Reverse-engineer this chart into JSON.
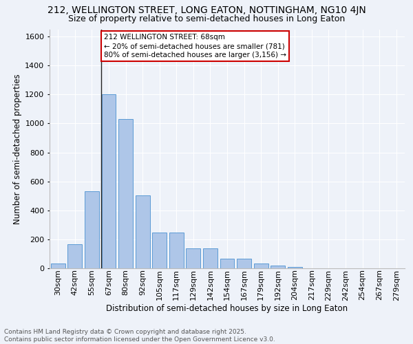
{
  "title": "212, WELLINGTON STREET, LONG EATON, NOTTINGHAM, NG10 4JN",
  "subtitle": "Size of property relative to semi-detached houses in Long Eaton",
  "xlabel": "Distribution of semi-detached houses by size in Long Eaton",
  "ylabel": "Number of semi-detached properties",
  "categories": [
    "30sqm",
    "42sqm",
    "55sqm",
    "67sqm",
    "80sqm",
    "92sqm",
    "105sqm",
    "117sqm",
    "129sqm",
    "142sqm",
    "154sqm",
    "167sqm",
    "179sqm",
    "192sqm",
    "204sqm",
    "217sqm",
    "229sqm",
    "242sqm",
    "254sqm",
    "267sqm",
    "279sqm"
  ],
  "values": [
    35,
    165,
    530,
    1200,
    1030,
    505,
    245,
    245,
    140,
    140,
    65,
    65,
    35,
    20,
    10,
    0,
    0,
    0,
    0,
    0,
    0
  ],
  "bar_color": "#aec6e8",
  "bar_edge_color": "#5b9bd5",
  "property_label": "212 WELLINGTON STREET: 68sqm",
  "pct_smaller": 20,
  "n_smaller": 781,
  "pct_larger": 80,
  "n_larger": 3156,
  "annotation_box_color": "#cc0000",
  "vline_pos": 2.57,
  "ylim": [
    0,
    1650
  ],
  "yticks": [
    0,
    200,
    400,
    600,
    800,
    1000,
    1200,
    1400,
    1600
  ],
  "bg_color": "#eef2f9",
  "grid_color": "#ffffff",
  "footer": "Contains HM Land Registry data © Crown copyright and database right 2025.\nContains public sector information licensed under the Open Government Licence v3.0.",
  "title_fontsize": 10,
  "subtitle_fontsize": 9,
  "xlabel_fontsize": 8.5,
  "ylabel_fontsize": 8.5,
  "tick_fontsize": 8,
  "footer_fontsize": 6.5,
  "ann_fontsize": 7.5
}
